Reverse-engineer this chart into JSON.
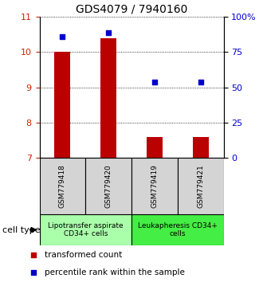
{
  "title": "GDS4079 / 7940160",
  "samples": [
    "GSM779418",
    "GSM779420",
    "GSM779419",
    "GSM779421"
  ],
  "bar_values": [
    10.0,
    10.4,
    7.6,
    7.6
  ],
  "percentile_values": [
    10.45,
    10.55,
    9.15,
    9.15
  ],
  "bar_color": "#bb0000",
  "dot_color": "#0000cc",
  "ylim_left": [
    7,
    11
  ],
  "ylim_right": [
    0,
    100
  ],
  "yticks_left": [
    7,
    8,
    9,
    10,
    11
  ],
  "yticks_right": [
    0,
    25,
    50,
    75,
    100
  ],
  "ytick_labels_right": [
    "0",
    "25",
    "50",
    "75",
    "100%"
  ],
  "groups": [
    {
      "label": "Lipotransfer aspirate\nCD34+ cells",
      "color": "#aaffaa"
    },
    {
      "label": "Leukapheresis CD34+\ncells",
      "color": "#44ee44"
    }
  ],
  "cell_type_label": "cell type",
  "legend_red_label": "transformed count",
  "legend_blue_label": "percentile rank within the sample",
  "bar_width": 0.35,
  "left_tick_color": "#cc2200",
  "right_tick_color": "#0000cc",
  "sample_box_color": "#d4d4d4",
  "title_fontsize": 10,
  "tick_fontsize": 8,
  "sample_fontsize": 6.5,
  "group_fontsize": 6.5,
  "legend_fontsize": 7.5
}
